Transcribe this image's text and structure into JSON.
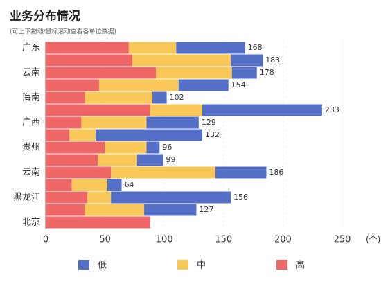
{
  "chart_data": {
    "type": "stacked-bar-horizontal",
    "title": "业务分布情况",
    "subtitle": "(可上下拖动/鼠标滚动查看各单位数据)",
    "x_label": "(个)",
    "categories": [
      "广东",
      null,
      "云南",
      null,
      "海南",
      null,
      "广西",
      null,
      "贵州",
      null,
      "云南",
      null,
      "黑龙江",
      null,
      "北京"
    ],
    "series": [
      {
        "name": "低",
        "color": "#5470c6",
        "values": [
          58,
          27,
          21,
          42,
          12,
          101,
          44,
          90,
          11,
          22,
          43,
          12,
          101,
          44,
          0
        ]
      },
      {
        "name": "中",
        "color": "#fac858",
        "values": [
          40,
          83,
          64,
          67,
          57,
          44,
          55,
          22,
          35,
          33,
          88,
          30,
          20,
          50,
          0
        ]
      },
      {
        "name": "高",
        "color": "#ee6666",
        "values": [
          70,
          73,
          93,
          45,
          33,
          88,
          30,
          20,
          50,
          44,
          55,
          22,
          35,
          33,
          88
        ]
      }
    ],
    "totals": [
      168,
      183,
      178,
      154,
      102,
      233,
      129,
      132,
      96,
      99,
      186,
      64,
      156,
      127,
      null
    ],
    "xlim": [
      0,
      262
    ],
    "xticks": [
      0,
      50,
      100,
      150,
      200,
      250
    ]
  }
}
